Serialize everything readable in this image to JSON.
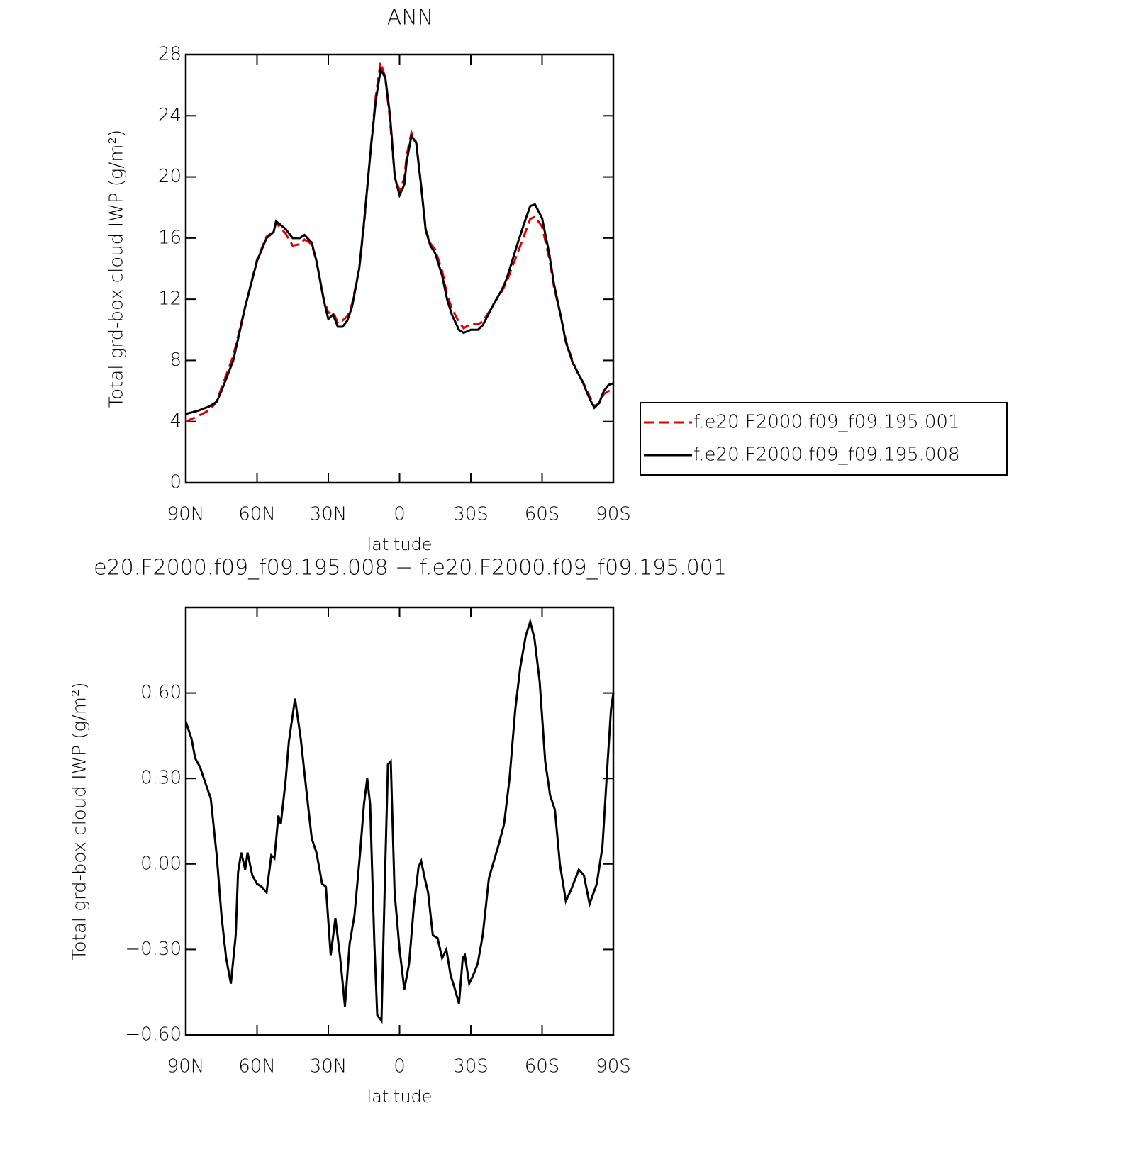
{
  "chart_data": [
    {
      "type": "line",
      "title": "ANN",
      "xlabel": "latitude",
      "ylabel": "Total grd-box cloud IWP (g/m²)",
      "x": [
        90,
        85,
        80,
        77,
        75,
        70,
        65,
        60,
        56,
        53,
        52,
        48,
        45,
        42,
        40,
        37,
        35,
        32,
        30,
        28,
        26,
        24,
        22,
        20,
        17,
        15,
        12,
        10,
        8,
        6,
        4,
        2,
        0,
        -2,
        -3,
        -5,
        -7,
        -9,
        -11,
        -13,
        -15,
        -18,
        -20,
        -22,
        -25,
        -27,
        -30,
        -33,
        -35,
        -38,
        -40,
        -43,
        -45,
        -48,
        -50,
        -53,
        -55,
        -57,
        -60,
        -63,
        -65,
        -68,
        -70,
        -73,
        -75,
        -77,
        -80,
        -82,
        -84,
        -86,
        -88,
        -90
      ],
      "series": [
        {
          "name": "f.e20.F2000.f09_f09.195.001",
          "color": "#e00000",
          "line_style": "dashed",
          "values": [
            4.0,
            4.35,
            4.75,
            5.3,
            6.2,
            8.3,
            11.5,
            14.6,
            16.1,
            16.4,
            17.0,
            16.3,
            15.5,
            15.6,
            15.9,
            15.6,
            14.5,
            12.1,
            11.1,
            11.2,
            10.45,
            10.6,
            10.9,
            11.7,
            14.0,
            16.8,
            22.1,
            25.3,
            27.5,
            26.5,
            23.65,
            20.0,
            19.1,
            19.9,
            21.4,
            22.9,
            22.25,
            19.5,
            16.56,
            15.65,
            15.25,
            13.8,
            12.3,
            11.4,
            10.5,
            10.1,
            10.4,
            10.35,
            10.55,
            11.25,
            11.8,
            12.5,
            13.1,
            14.35,
            15.15,
            16.4,
            17.25,
            17.4,
            16.75,
            14.7,
            12.8,
            10.8,
            9.3,
            7.9,
            7.2,
            6.65,
            5.65,
            5.0,
            5.2,
            5.8,
            6.0,
            5.9
          ]
        },
        {
          "name": "f.e20.F2000.f09_f09.195.008",
          "color": "#000000",
          "line_style": "solid",
          "values": [
            4.5,
            4.7,
            5.0,
            5.3,
            6.0,
            8.0,
            11.5,
            14.5,
            16.0,
            16.4,
            17.1,
            16.6,
            16.0,
            16.0,
            16.2,
            15.7,
            14.5,
            12.0,
            10.7,
            11.0,
            10.2,
            10.2,
            10.6,
            11.5,
            14.0,
            17.0,
            22.0,
            25.0,
            27.0,
            26.5,
            24.0,
            20.0,
            18.8,
            19.5,
            21.0,
            22.7,
            22.2,
            19.5,
            16.5,
            15.5,
            15.0,
            13.5,
            12.0,
            11.0,
            10.0,
            9.8,
            10.0,
            10.0,
            10.3,
            11.2,
            11.8,
            12.6,
            13.3,
            14.8,
            15.8,
            17.2,
            18.1,
            18.2,
            17.3,
            15.0,
            13.0,
            10.8,
            9.2,
            7.8,
            7.2,
            6.6,
            5.5,
            4.9,
            5.2,
            6.0,
            6.4,
            6.5
          ]
        }
      ],
      "xlim": [
        90,
        -90
      ],
      "xticks": [
        {
          "value": 90,
          "label": "90N"
        },
        {
          "value": 60,
          "label": "60N"
        },
        {
          "value": 30,
          "label": "30N"
        },
        0,
        {
          "value": -30,
          "label": "30S"
        },
        {
          "value": -60,
          "label": "60S"
        },
        {
          "value": -90,
          "label": "90S"
        }
      ],
      "ylim": [
        0,
        28
      ],
      "yticks": [
        0,
        4,
        8,
        12,
        16,
        20,
        24,
        28
      ],
      "legend": "right",
      "grid": false
    },
    {
      "type": "line",
      "title": "e20.F2000.f09_f09.195.008 − f.e20.F2000.f09_f09.195.001",
      "xlabel": "latitude",
      "ylabel": "Total grd-box cloud IWP (g/m²)",
      "x": [
        90,
        87.6,
        86,
        84,
        82,
        79.5,
        77,
        75,
        73,
        71,
        69,
        68,
        66.7,
        65,
        64,
        62,
        60,
        58,
        56,
        54,
        52.7,
        51,
        50,
        48,
        46.6,
        44,
        41.6,
        39,
        37,
        35,
        32.6,
        31,
        29,
        27,
        25,
        23,
        21,
        19,
        16.6,
        15,
        13.6,
        12.4,
        10.6,
        9.4,
        7.6,
        6.1,
        4.9,
        3.7,
        2.1,
        0,
        -2,
        -4,
        -6,
        -8,
        -9.1,
        -10.6,
        -12,
        -14,
        -16,
        -17.9,
        -19.7,
        -21.5,
        -23.3,
        -25,
        -26.6,
        -27.5,
        -29.3,
        -31,
        -32.9,
        -35,
        -37.6,
        -39.7,
        -41.8,
        -44,
        -46.3,
        -48.7,
        -50.8,
        -53.1,
        -55,
        -56.8,
        -59,
        -61.3,
        -63.4,
        -65.4,
        -67.5,
        -70,
        -72.2,
        -75.5,
        -77.6,
        -80,
        -83,
        -85.4,
        -87.6,
        -89,
        -90
      ],
      "values": [
        0.5,
        0.44,
        0.37,
        0.34,
        0.29,
        0.23,
        0.03,
        -0.18,
        -0.33,
        -0.42,
        -0.25,
        -0.03,
        0.04,
        -0.02,
        0.04,
        -0.04,
        -0.07,
        -0.08,
        -0.1,
        0.03,
        0.02,
        0.17,
        0.14,
        0.29,
        0.43,
        0.58,
        0.44,
        0.24,
        0.09,
        0.04,
        -0.07,
        -0.08,
        -0.32,
        -0.19,
        -0.33,
        -0.5,
        -0.28,
        -0.18,
        0.04,
        0.21,
        0.3,
        0.21,
        -0.28,
        -0.53,
        -0.55,
        -0.03,
        0.35,
        0.36,
        -0.1,
        -0.3,
        -0.44,
        -0.35,
        -0.15,
        -0.01,
        0.01,
        -0.05,
        -0.1,
        -0.25,
        -0.26,
        -0.33,
        -0.3,
        -0.39,
        -0.44,
        -0.49,
        -0.33,
        -0.32,
        -0.42,
        -0.39,
        -0.35,
        -0.25,
        -0.05,
        0.01,
        0.07,
        0.14,
        0.3,
        0.54,
        0.69,
        0.8,
        0.85,
        0.79,
        0.64,
        0.36,
        0.24,
        0.19,
        0.0,
        -0.13,
        -0.09,
        -0.02,
        -0.04,
        -0.14,
        -0.07,
        0.06,
        0.36,
        0.54,
        0.6
      ],
      "color": "#000000",
      "xlim": [
        90,
        -90
      ],
      "xticks": [
        {
          "value": 90,
          "label": "90N"
        },
        {
          "value": 60,
          "label": "60N"
        },
        {
          "value": 30,
          "label": "30N"
        },
        0,
        {
          "value": -30,
          "label": "30S"
        },
        {
          "value": -60,
          "label": "60S"
        },
        {
          "value": -90,
          "label": "90S"
        }
      ],
      "ylim": [
        -0.6,
        0.9
      ],
      "yticks": [
        {
          "value": -0.6,
          "label": "−0.60"
        },
        {
          "value": -0.3,
          "label": "−0.30"
        },
        {
          "value": 0,
          "label": "0.00"
        },
        {
          "value": 0.3,
          "label": "0.30"
        },
        {
          "value": 0.6,
          "label": "0.60"
        }
      ],
      "grid": false
    }
  ]
}
